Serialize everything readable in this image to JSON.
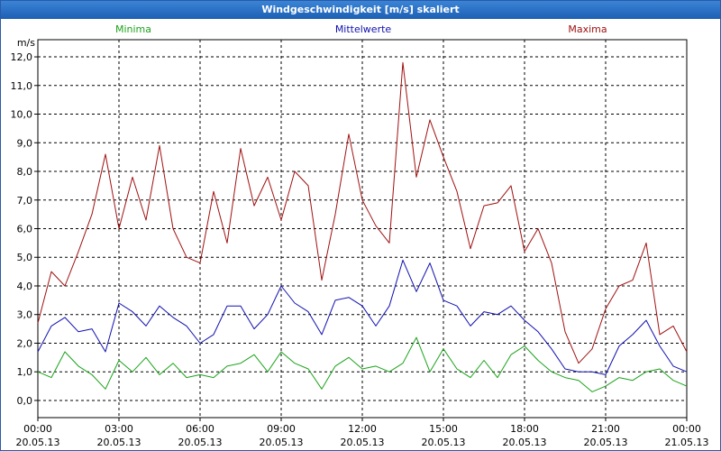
{
  "window": {
    "title": "Windgeschwindigkeit [m/s] skaliert"
  },
  "chart_data": {
    "type": "line",
    "ylabel": "m/s",
    "ylim": [
      -0.6,
      12.6
    ],
    "yticks": [
      "0,0",
      "1,0",
      "2,0",
      "3,0",
      "4,0",
      "5,0",
      "6,0",
      "7,0",
      "8,0",
      "9,0",
      "10,0",
      "11,0",
      "12,0"
    ],
    "xlim": [
      0,
      24
    ],
    "xticks": [
      {
        "time": "00:00",
        "date": "20.05.13"
      },
      {
        "time": "03:00",
        "date": "20.05.13"
      },
      {
        "time": "06:00",
        "date": "20.05.13"
      },
      {
        "time": "09:00",
        "date": "20.05.13"
      },
      {
        "time": "12:00",
        "date": "20.05.13"
      },
      {
        "time": "15:00",
        "date": "20.05.13"
      },
      {
        "time": "18:00",
        "date": "20.05.13"
      },
      {
        "time": "21:00",
        "date": "20.05.13"
      },
      {
        "time": "00:00",
        "date": "21.05.13"
      }
    ],
    "grid": true,
    "series": [
      {
        "name": "Minima",
        "color": "#1aa31a",
        "x": [
          0,
          0.5,
          1,
          1.5,
          2,
          2.5,
          3,
          3.5,
          4,
          4.5,
          5,
          5.5,
          6,
          6.5,
          7,
          7.5,
          8,
          8.5,
          9,
          9.5,
          10,
          10.5,
          11,
          11.5,
          12,
          12.5,
          13,
          13.5,
          14,
          14.5,
          15,
          15.5,
          16,
          16.5,
          17,
          17.5,
          18,
          18.5,
          19,
          19.5,
          20,
          20.5,
          21,
          21.5,
          22,
          22.5,
          23,
          23.5,
          24
        ],
        "values": [
          1.0,
          0.8,
          1.7,
          1.2,
          0.9,
          0.4,
          1.4,
          1.0,
          1.5,
          0.9,
          1.3,
          0.8,
          0.9,
          0.8,
          1.2,
          1.3,
          1.6,
          1.0,
          1.7,
          1.3,
          1.1,
          0.4,
          1.2,
          1.5,
          1.1,
          1.2,
          1.0,
          1.3,
          2.2,
          1.0,
          1.8,
          1.1,
          0.8,
          1.4,
          0.8,
          1.6,
          1.9,
          1.4,
          1.0,
          0.8,
          0.7,
          0.3,
          0.5,
          0.8,
          0.7,
          1.0,
          1.1,
          0.7,
          0.5
        ]
      },
      {
        "name": "Mittelwerte",
        "color": "#1010b0",
        "x": [
          0,
          0.5,
          1,
          1.5,
          2,
          2.5,
          3,
          3.5,
          4,
          4.5,
          5,
          5.5,
          6,
          6.5,
          7,
          7.5,
          8,
          8.5,
          9,
          9.5,
          10,
          10.5,
          11,
          11.5,
          12,
          12.5,
          13,
          13.5,
          14,
          14.5,
          15,
          15.5,
          16,
          16.5,
          17,
          17.5,
          18,
          18.5,
          19,
          19.5,
          20,
          20.5,
          21,
          21.5,
          22,
          22.5,
          23,
          23.5,
          24
        ],
        "values": [
          1.7,
          2.6,
          2.9,
          2.4,
          2.5,
          1.7,
          3.4,
          3.1,
          2.6,
          3.3,
          2.9,
          2.6,
          2.0,
          2.3,
          3.3,
          3.3,
          2.5,
          3.0,
          4.0,
          3.4,
          3.1,
          2.3,
          3.5,
          3.6,
          3.3,
          2.6,
          3.3,
          4.9,
          3.8,
          4.8,
          3.5,
          3.3,
          2.6,
          3.1,
          3.0,
          3.3,
          2.8,
          2.4,
          1.8,
          1.1,
          1.0,
          1.0,
          0.9,
          1.9,
          2.3,
          2.8,
          1.9,
          1.2,
          1.0
        ]
      },
      {
        "name": "Maxima",
        "color": "#a01010",
        "x": [
          0,
          0.5,
          1,
          1.5,
          2,
          2.5,
          3,
          3.5,
          4,
          4.5,
          5,
          5.5,
          6,
          6.5,
          7,
          7.5,
          8,
          8.5,
          9,
          9.5,
          10,
          10.5,
          11,
          11.5,
          12,
          12.5,
          13,
          13.5,
          14,
          14.5,
          15,
          15.5,
          16,
          16.5,
          17,
          17.5,
          18,
          18.5,
          19,
          19.5,
          20,
          20.5,
          21,
          21.5,
          22,
          22.5,
          23,
          23.5,
          24
        ],
        "values": [
          2.7,
          4.5,
          4.0,
          5.2,
          6.5,
          8.6,
          6.0,
          7.8,
          6.3,
          8.9,
          6.0,
          5.0,
          4.8,
          7.3,
          5.5,
          8.8,
          6.8,
          7.8,
          6.3,
          8.0,
          7.5,
          4.2,
          6.5,
          9.3,
          7.0,
          6.1,
          5.5,
          11.8,
          7.8,
          9.8,
          8.5,
          7.3,
          5.3,
          6.8,
          6.9,
          7.5,
          5.2,
          6.0,
          4.8,
          2.4,
          1.3,
          1.8,
          3.2,
          4.0,
          4.2,
          5.5,
          2.3,
          2.6,
          1.7
        ]
      }
    ]
  }
}
